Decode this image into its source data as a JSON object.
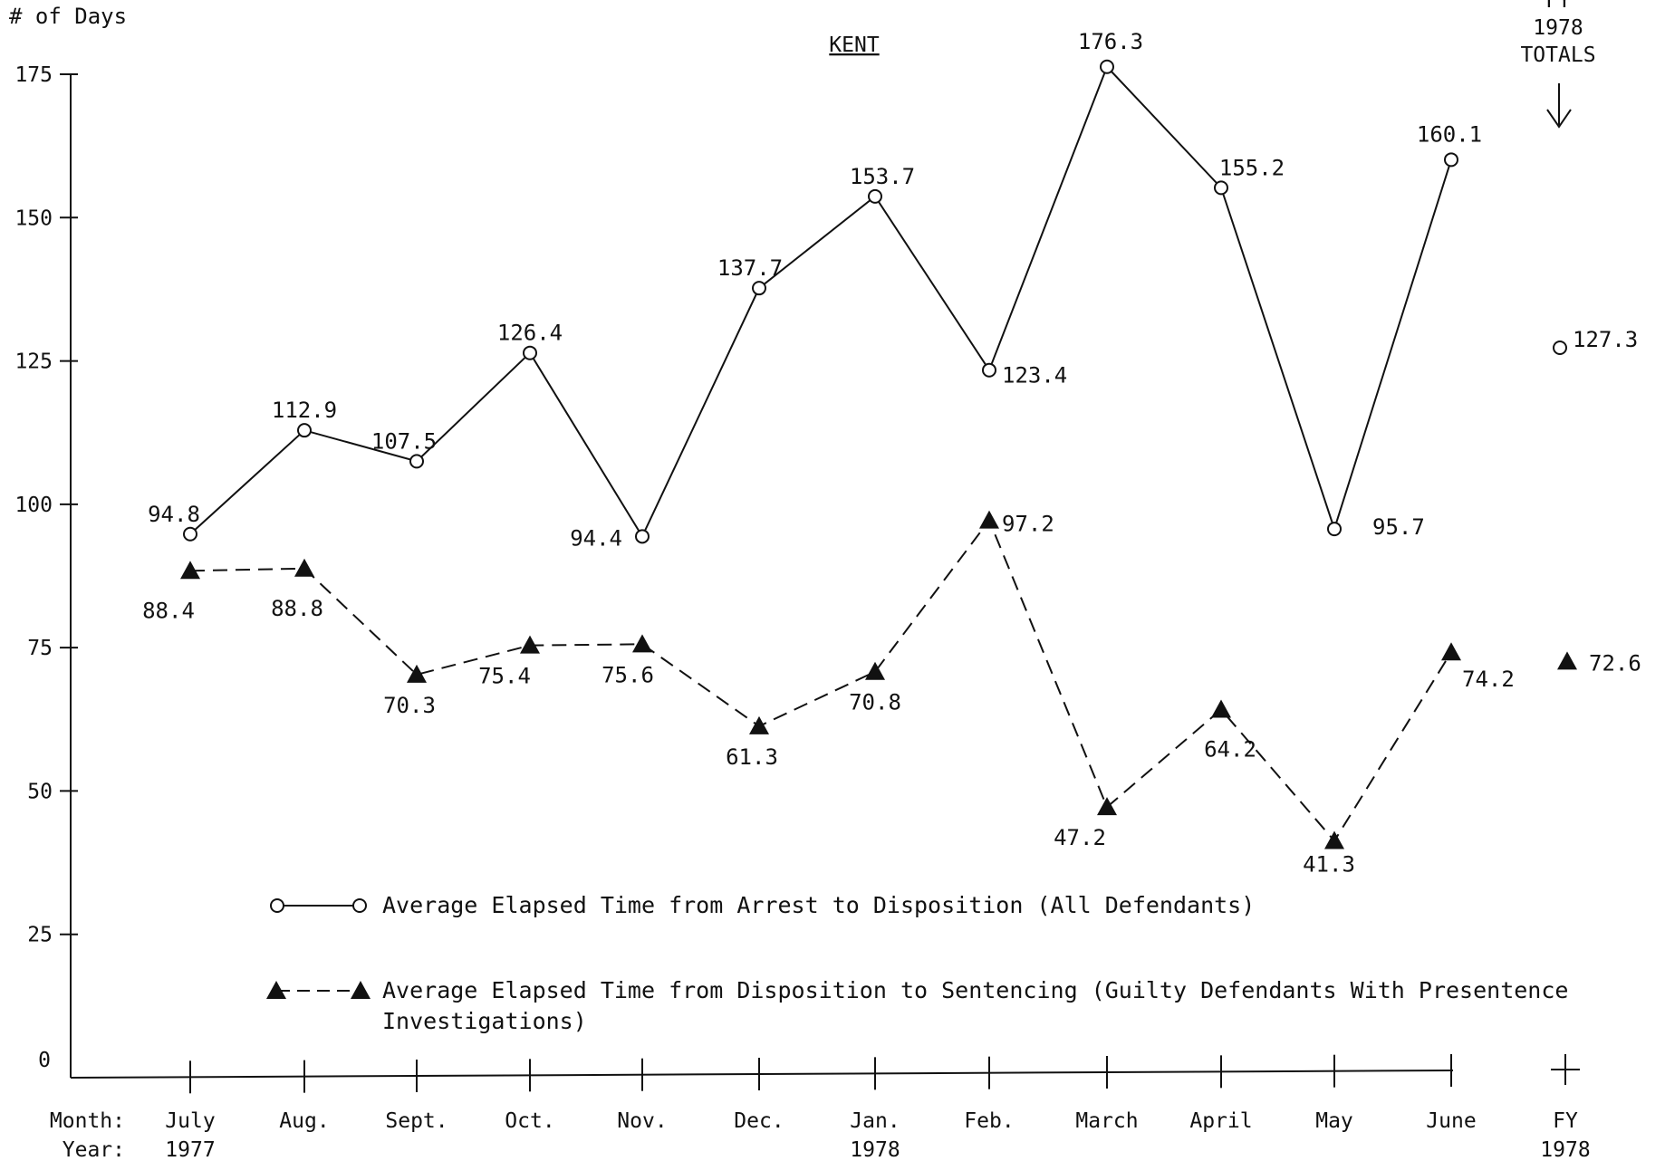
{
  "chart_data": {
    "type": "line",
    "title": "KENT",
    "ylabel": "# of Days",
    "ylim": [
      0,
      175
    ],
    "yticks": [
      "0",
      "25",
      "50",
      "75",
      "100",
      "125",
      "150",
      "175"
    ],
    "grid": false,
    "x_row_labels": {
      "month": "Month:",
      "year": "Year:"
    },
    "categories": [
      "July",
      "Aug.",
      "Sept.",
      "Oct.",
      "Nov.",
      "Dec.",
      "Jan.",
      "Feb.",
      "March",
      "April",
      "May",
      "June"
    ],
    "category_years": [
      "1977",
      "",
      "",
      "",
      "",
      "",
      "1978",
      "",
      "",
      "",
      "",
      ""
    ],
    "totals_category": {
      "label": "FY",
      "year": "1978"
    },
    "totals_header": [
      "FY",
      "1978",
      "TOTALS"
    ],
    "series": [
      {
        "name": "Average Elapsed Time from Arrest to Disposition (All Defendants)",
        "style": "solid-open-circle",
        "values": [
          94.8,
          112.9,
          107.5,
          126.4,
          94.4,
          137.7,
          153.7,
          123.4,
          176.3,
          155.2,
          95.7,
          160.1
        ],
        "labels": [
          "94.8",
          "112.9",
          "107.5",
          "126.4",
          "94.4",
          "137.7",
          "153.7",
          "123.4",
          "176.3",
          "155.2",
          "95.7",
          "160.1"
        ],
        "total": 127.3,
        "total_label": "127.3"
      },
      {
        "name": "Average Elapsed Time from Disposition to Sentencing (Guilty Defendants With Presentence Investigations)",
        "style": "dashed-filled-triangle",
        "values": [
          88.4,
          88.8,
          70.3,
          75.4,
          75.6,
          61.3,
          70.8,
          97.2,
          47.2,
          64.2,
          41.3,
          74.2
        ],
        "labels": [
          "88.4",
          "88.8",
          "70.3",
          "75.4",
          "75.6",
          "61.3",
          "70.8",
          "97.2",
          "47.2",
          "64.2",
          "41.3",
          "74.2"
        ],
        "total": 72.6,
        "total_label": "72.6"
      }
    ],
    "legend": {
      "placement": "bottom-center",
      "lines": [
        [
          "Average Elapsed Time from Arrest to Disposition (All Defendants)"
        ],
        [
          "Average Elapsed Time from Disposition to Sentencing (Guilty Defendants With Presentence",
          "Investigations)"
        ]
      ]
    },
    "colors": {
      "ink": "#111111",
      "background": "#ffffff"
    }
  }
}
